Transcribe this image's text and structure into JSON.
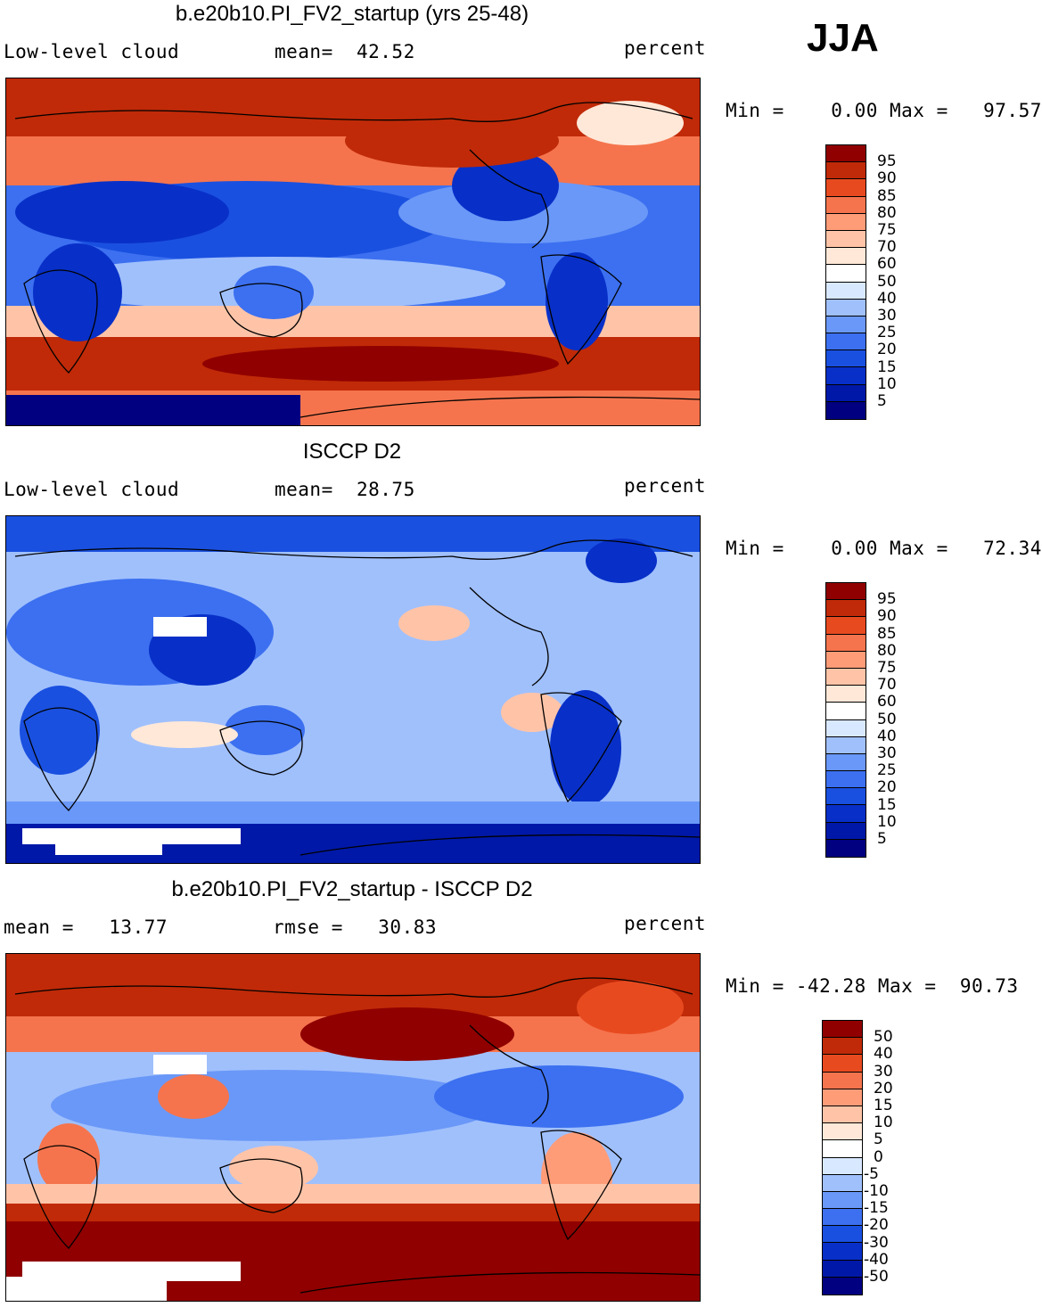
{
  "season": "JJA",
  "units": "percent",
  "palette": [
    "#000080",
    "#0018a8",
    "#0830c8",
    "#1a50e0",
    "#3c70f0",
    "#6a98f8",
    "#a0c0fc",
    "#d8e8ff",
    "#ffffff",
    "#ffe8d8",
    "#ffc4a8",
    "#ff9c78",
    "#f5744d",
    "#e84a20",
    "#c02a08",
    "#900000"
  ],
  "panels": [
    {
      "title": "b.e20b10.PI_FV2_startup (yrs 25-48)",
      "left_label": "Low-level cloud",
      "center_label": "mean=  42.52",
      "right_label": "percent",
      "stats": "Min =    0.00 Max =   97.57",
      "levels": [
        "95",
        "90",
        "85",
        "80",
        "75",
        "70",
        "60",
        "50",
        "40",
        "30",
        "25",
        "20",
        "15",
        "10",
        "5"
      ]
    },
    {
      "title": "ISCCP D2",
      "left_label": "Low-level cloud",
      "center_label": "mean=  28.75",
      "right_label": "percent",
      "stats": "Min =    0.00 Max =   72.34",
      "levels": [
        "95",
        "90",
        "85",
        "80",
        "75",
        "70",
        "60",
        "50",
        "40",
        "30",
        "25",
        "20",
        "15",
        "10",
        "5"
      ]
    },
    {
      "title": "b.e20b10.PI_FV2_startup - ISCCP D2",
      "left_label": "mean =   13.77",
      "center_label": "rmse =   30.83",
      "right_label": "percent",
      "stats": "Min = -42.28 Max =  90.73",
      "levels": [
        "50",
        "40",
        "30",
        "20",
        "15",
        "10",
        "5",
        "0",
        "-5",
        "-10",
        "-15",
        "-20",
        "-30",
        "-40",
        "-50"
      ]
    }
  ]
}
